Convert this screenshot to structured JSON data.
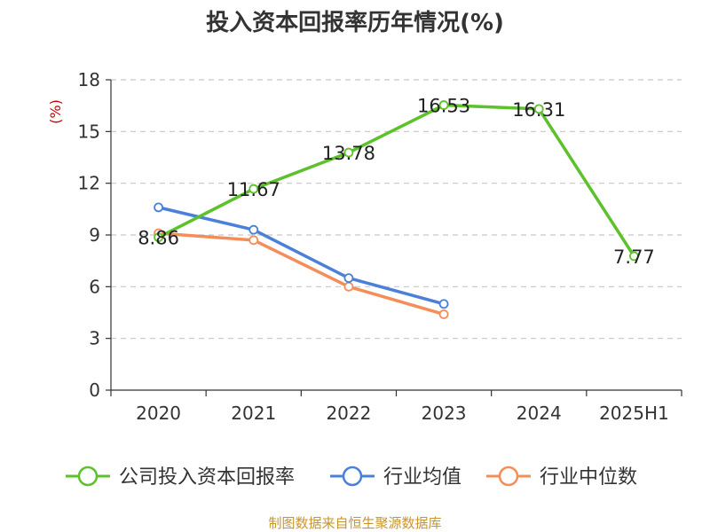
{
  "chart_data": {
    "type": "line",
    "title": "投入资本回报率历年情况(%)",
    "ylabel": "(%)",
    "xlabel": "",
    "categories": [
      "2020",
      "2021",
      "2022",
      "2023",
      "2024",
      "2025H1"
    ],
    "ylim": [
      0,
      18
    ],
    "yticks": [
      0,
      3,
      6,
      9,
      12,
      15,
      18
    ],
    "grid": "dashed-horizontal",
    "legend_position": "bottom",
    "series": [
      {
        "name": "公司投入资本回报率",
        "color": "#5cc12a",
        "values": [
          8.86,
          11.67,
          13.78,
          16.53,
          16.31,
          7.77
        ],
        "labels": [
          "8.86",
          "11.67",
          "13.78",
          "16.53",
          "16.31",
          "7.77"
        ]
      },
      {
        "name": "行业均值",
        "color": "#4a80d9",
        "values": [
          10.6,
          9.3,
          6.5,
          5.0,
          null,
          null
        ]
      },
      {
        "name": "行业中位数",
        "color": "#f58d5a",
        "values": [
          9.1,
          8.7,
          6.0,
          4.4,
          null,
          null
        ]
      }
    ],
    "source": "制图数据来自恒生聚源数据库"
  }
}
